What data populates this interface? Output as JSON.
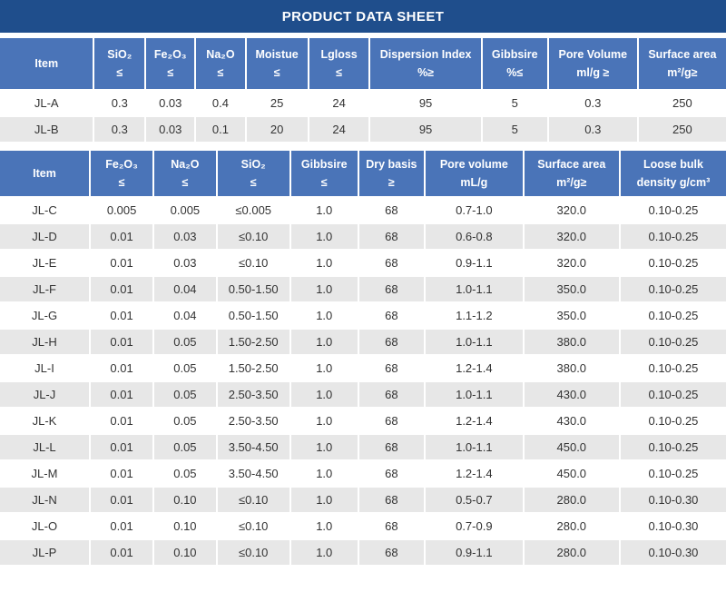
{
  "title": "PRODUCT DATA SHEET",
  "colors": {
    "title_bar": "#1F4E8C",
    "header": "#4A74B8",
    "row_alternate": "#E7E7E7",
    "text": "#333333"
  },
  "table1": {
    "headers": [
      "Item",
      "SiO₂\n≤",
      "Fe₂O₃\n≤",
      "Na₂O\n≤",
      "Moistue\n≤",
      "Lgloss\n≤",
      "Dispersion Index\n%≥",
      "Gibbsire\n%≤",
      "Pore Volume\nml/g ≥",
      "Surface area\nm²/g≥"
    ],
    "rows": [
      [
        "JL-A",
        "0.3",
        "0.03",
        "0.4",
        "25",
        "24",
        "95",
        "5",
        "0.3",
        "250"
      ],
      [
        "JL-B",
        "0.3",
        "0.03",
        "0.1",
        "20",
        "24",
        "95",
        "5",
        "0.3",
        "250"
      ]
    ]
  },
  "table2": {
    "headers": [
      "Item",
      "Fe₂O₃\n≤",
      "Na₂O\n≤",
      "SiO₂\n≤",
      "Gibbsire\n≤",
      "Dry basis\n≥",
      "Pore volume\nmL/g",
      "Surface area\nm²/g≥",
      "Loose bulk\ndensity g/cm³"
    ],
    "rows": [
      [
        "JL-C",
        "0.005",
        "0.005",
        "≤0.005",
        "1.0",
        "68",
        "0.7-1.0",
        "320.0",
        "0.10-0.25"
      ],
      [
        "JL-D",
        "0.01",
        "0.03",
        "≤0.10",
        "1.0",
        "68",
        "0.6-0.8",
        "320.0",
        "0.10-0.25"
      ],
      [
        "JL-E",
        "0.01",
        "0.03",
        "≤0.10",
        "1.0",
        "68",
        "0.9-1.1",
        "320.0",
        "0.10-0.25"
      ],
      [
        "JL-F",
        "0.01",
        "0.04",
        "0.50-1.50",
        "1.0",
        "68",
        "1.0-1.1",
        "350.0",
        "0.10-0.25"
      ],
      [
        "JL-G",
        "0.01",
        "0.04",
        "0.50-1.50",
        "1.0",
        "68",
        "1.1-1.2",
        "350.0",
        "0.10-0.25"
      ],
      [
        "JL-H",
        "0.01",
        "0.05",
        "1.50-2.50",
        "1.0",
        "68",
        "1.0-1.1",
        "380.0",
        "0.10-0.25"
      ],
      [
        "JL-I",
        "0.01",
        "0.05",
        "1.50-2.50",
        "1.0",
        "68",
        "1.2-1.4",
        "380.0",
        "0.10-0.25"
      ],
      [
        "JL-J",
        "0.01",
        "0.05",
        "2.50-3.50",
        "1.0",
        "68",
        "1.0-1.1",
        "430.0",
        "0.10-0.25"
      ],
      [
        "JL-K",
        "0.01",
        "0.05",
        "2.50-3.50",
        "1.0",
        "68",
        "1.2-1.4",
        "430.0",
        "0.10-0.25"
      ],
      [
        "JL-L",
        "0.01",
        "0.05",
        "3.50-4.50",
        "1.0",
        "68",
        "1.0-1.1",
        "450.0",
        "0.10-0.25"
      ],
      [
        "JL-M",
        "0.01",
        "0.05",
        "3.50-4.50",
        "1.0",
        "68",
        "1.2-1.4",
        "450.0",
        "0.10-0.25"
      ],
      [
        "JL-N",
        "0.01",
        "0.10",
        "≤0.10",
        "1.0",
        "68",
        "0.5-0.7",
        "280.0",
        "0.10-0.30"
      ],
      [
        "JL-O",
        "0.01",
        "0.10",
        "≤0.10",
        "1.0",
        "68",
        "0.7-0.9",
        "280.0",
        "0.10-0.30"
      ],
      [
        "JL-P",
        "0.01",
        "0.10",
        "≤0.10",
        "1.0",
        "68",
        "0.9-1.1",
        "280.0",
        "0.10-0.30"
      ]
    ]
  }
}
